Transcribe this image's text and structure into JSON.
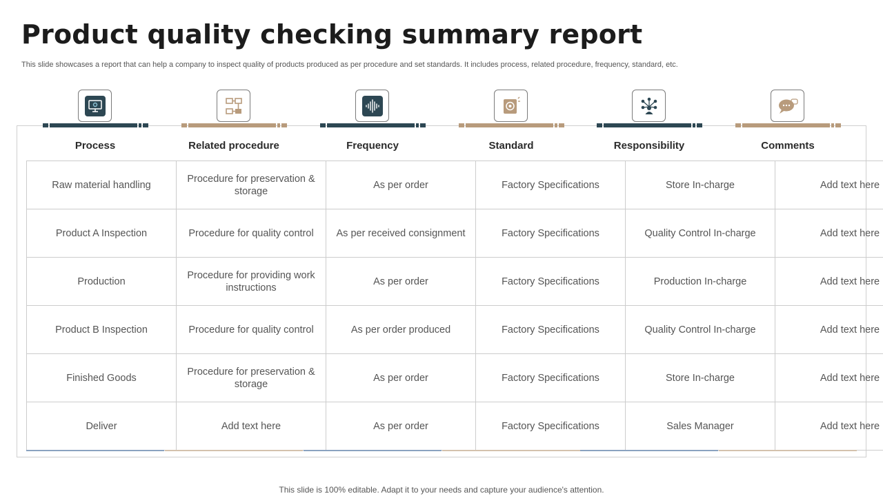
{
  "title": "Product quality checking summary report",
  "subtitle": "This slide showcases a report that can help a company to inspect quality of products produced as per procedure and set standards. It includes process, related procedure, frequency, standard, etc.",
  "colors": {
    "dark": "#2d4753",
    "tan": "#b89b7c"
  },
  "columns": [
    {
      "label": "Process",
      "icon": "monitor-settings-icon",
      "color": "dark"
    },
    {
      "label": "Related procedure",
      "icon": "flowchart-icon",
      "color": "tan"
    },
    {
      "label": "Frequency",
      "icon": "soundwave-icon",
      "color": "dark"
    },
    {
      "label": "Standard",
      "icon": "certificate-icon",
      "color": "tan"
    },
    {
      "label": "Responsibility",
      "icon": "team-network-icon",
      "color": "dark"
    },
    {
      "label": "Comments",
      "icon": "chat-bubble-icon",
      "color": "tan"
    }
  ],
  "rows": [
    [
      "Raw material handling",
      "Procedure for preservation & storage",
      "As per order",
      "Factory Specifications",
      "Store In-charge",
      "Add text here"
    ],
    [
      "Product A Inspection",
      "Procedure for quality control",
      "As per received consignment",
      "Factory Specifications",
      "Quality Control In-charge",
      "Add text here"
    ],
    [
      "Production",
      "Procedure for providing work instructions",
      "As per order",
      "Factory Specifications",
      "Production In-charge",
      "Add text here"
    ],
    [
      "Product B Inspection",
      "Procedure for quality control",
      "As per order produced",
      "Factory Specifications",
      "Quality Control In-charge",
      "Add text here"
    ],
    [
      "Finished Goods",
      "Procedure for preservation & storage",
      "As per order",
      "Factory Specifications",
      "Store In-charge",
      "Add text here"
    ],
    [
      "Deliver",
      "Add text here",
      "As per order",
      "Factory Specifications",
      "Sales Manager",
      "Add text here"
    ]
  ],
  "footer": "This slide is 100% editable. Adapt it to your needs and capture your audience's attention."
}
